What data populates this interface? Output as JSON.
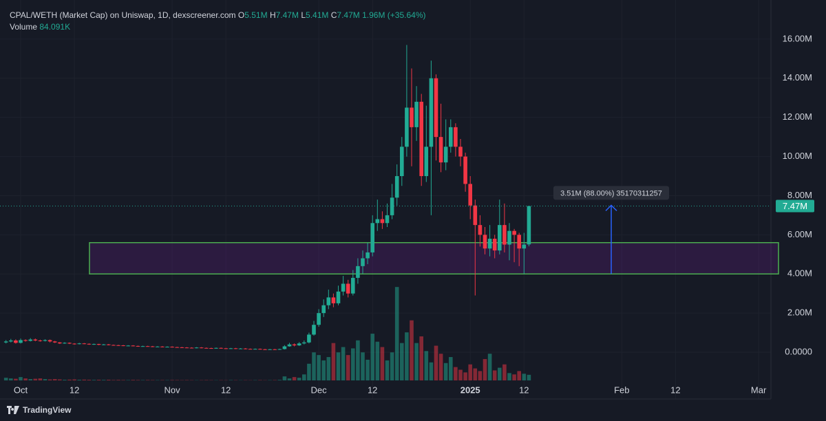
{
  "chart_data": {
    "type": "candlestick",
    "title": "CPAL/WETH (Market Cap) on Uniswap, 1D, dexscreener.com",
    "ohlc_header": [
      {
        "label": "O",
        "value": "5.51M"
      },
      {
        "label": "H",
        "value": "7.47M"
      },
      {
        "label": "L",
        "value": "5.41M"
      },
      {
        "label": "C",
        "value": "7.47M"
      }
    ],
    "change": "1.96M (+35.64%)",
    "volume_title": "Volume",
    "volume_value": "84.091K",
    "categories": [
      null,
      null,
      null,
      "Oct",
      null,
      null,
      null,
      null,
      null,
      null,
      null,
      null,
      null,
      null,
      "12",
      null,
      null,
      null,
      null,
      null,
      null,
      null,
      null,
      null,
      null,
      null,
      null,
      null,
      null,
      null,
      null,
      null,
      null,
      null,
      "Nov",
      null,
      null,
      null,
      null,
      null,
      null,
      null,
      null,
      null,
      null,
      "12",
      null,
      null,
      null,
      null,
      null,
      null,
      null,
      null,
      null,
      null,
      null,
      null,
      null,
      null,
      null,
      null,
      null,
      null,
      "Dec",
      null,
      null,
      null,
      null,
      null,
      null,
      null,
      null,
      null,
      null,
      "12",
      null,
      null,
      null,
      null,
      null,
      null,
      null,
      null,
      null,
      null,
      null,
      null,
      null,
      null,
      null,
      null,
      null,
      null,
      null,
      "2025",
      null,
      null,
      null,
      null,
      null,
      null,
      null,
      null,
      null,
      null,
      "12",
      null,
      null,
      null,
      null,
      null,
      null,
      null,
      null,
      null,
      null,
      null,
      null,
      null,
      null,
      null,
      null,
      null,
      null,
      null,
      "Feb",
      null,
      null,
      null,
      null,
      null,
      null,
      null,
      null,
      null,
      null,
      "12",
      null,
      null,
      null,
      null,
      null,
      null,
      null,
      null,
      null,
      null,
      null,
      null,
      null,
      null,
      null,
      null,
      "Mar",
      null,
      null
    ],
    "open": [
      0.5,
      0.55,
      0.6,
      0.48,
      0.62,
      0.58,
      0.65,
      0.6,
      0.58,
      0.62,
      0.55,
      0.5,
      0.45,
      0.48,
      0.44,
      0.42,
      0.45,
      0.43,
      0.4,
      0.42,
      0.38,
      0.4,
      0.37,
      0.36,
      0.35,
      0.33,
      0.34,
      0.32,
      0.3,
      0.31,
      0.3,
      0.28,
      0.29,
      0.27,
      0.28,
      0.26,
      0.25,
      0.24,
      0.23,
      0.22,
      0.24,
      0.22,
      0.21,
      0.2,
      0.22,
      0.2,
      0.19,
      0.2,
      0.18,
      0.19,
      0.17,
      0.16,
      0.17,
      0.15,
      0.14,
      0.15,
      0.14,
      0.16,
      0.3,
      0.4,
      0.35,
      0.45,
      0.5,
      0.9,
      1.4,
      2.0,
      2.4,
      2.8,
      2.5,
      3.1,
      3.5,
      3.0,
      3.8,
      4.4,
      4.8,
      5.1,
      6.6,
      6.8,
      6.6,
      7.0,
      7.9,
      9.0,
      10.5,
      12.5,
      11.5,
      12.8,
      9.0,
      10.5,
      14.0,
      11.0,
      9.7,
      10.5,
      11.5,
      10.5,
      10.0,
      8.6,
      7.5,
      6.5,
      6.0,
      5.3,
      5.8,
      5.2,
      6.5,
      5.5,
      6.2,
      6.0,
      5.3,
      5.51,
      null,
      null,
      null,
      null,
      null,
      null,
      null,
      null,
      null,
      null,
      null,
      null,
      null,
      null,
      null,
      null,
      null,
      null,
      null,
      null,
      null,
      null,
      null,
      null,
      null,
      null,
      null,
      null,
      null,
      null,
      null,
      null,
      null,
      null,
      null,
      null,
      null,
      null,
      null,
      null,
      null,
      null,
      null,
      null,
      null,
      null,
      null,
      null,
      null
    ],
    "high": [
      0.62,
      0.68,
      0.66,
      0.7,
      0.66,
      0.72,
      0.7,
      0.64,
      0.66,
      0.65,
      0.58,
      0.52,
      0.51,
      0.5,
      0.46,
      0.48,
      0.47,
      0.45,
      0.44,
      0.43,
      0.42,
      0.42,
      0.39,
      0.38,
      0.37,
      0.36,
      0.36,
      0.34,
      0.33,
      0.33,
      0.32,
      0.31,
      0.31,
      0.3,
      0.3,
      0.28,
      0.27,
      0.26,
      0.25,
      0.26,
      0.26,
      0.24,
      0.23,
      0.24,
      0.24,
      0.22,
      0.22,
      0.22,
      0.21,
      0.21,
      0.19,
      0.19,
      0.19,
      0.17,
      0.17,
      0.17,
      0.18,
      0.36,
      0.48,
      0.45,
      0.52,
      0.6,
      1.0,
      1.6,
      2.2,
      2.7,
      3.2,
      3.0,
      3.4,
      3.9,
      3.7,
      4.2,
      4.8,
      5.2,
      5.6,
      7.0,
      7.8,
      7.2,
      7.6,
      8.6,
      9.6,
      11.0,
      15.7,
      14.5,
      13.6,
      13.2,
      12.6,
      14.9,
      14.2,
      12.7,
      11.9,
      11.9,
      11.7,
      10.9,
      10.2,
      9.0,
      7.8,
      7.0,
      6.4,
      6.5,
      6.0,
      7.8,
      7.6,
      6.6,
      6.3,
      6.1,
      6.1,
      7.47,
      null,
      null,
      null,
      null,
      null,
      null,
      null,
      null,
      null,
      null,
      null,
      null,
      null,
      null,
      null,
      null,
      null,
      null,
      null,
      null,
      null,
      null,
      null,
      null,
      null,
      null,
      null,
      null,
      null,
      null,
      null,
      null,
      null,
      null,
      null,
      null,
      null,
      null,
      null,
      null,
      null,
      null,
      null,
      null,
      null,
      null,
      null,
      null,
      null
    ],
    "low": [
      0.45,
      0.5,
      0.44,
      0.45,
      0.54,
      0.55,
      0.56,
      0.54,
      0.55,
      0.5,
      0.47,
      0.42,
      0.43,
      0.42,
      0.39,
      0.4,
      0.41,
      0.38,
      0.38,
      0.36,
      0.36,
      0.35,
      0.34,
      0.33,
      0.31,
      0.31,
      0.3,
      0.28,
      0.28,
      0.28,
      0.26,
      0.26,
      0.25,
      0.25,
      0.24,
      0.23,
      0.22,
      0.21,
      0.2,
      0.2,
      0.2,
      0.19,
      0.18,
      0.18,
      0.18,
      0.17,
      0.17,
      0.16,
      0.16,
      0.15,
      0.14,
      0.14,
      0.13,
      0.12,
      0.12,
      0.12,
      0.12,
      0.14,
      0.28,
      0.3,
      0.32,
      0.4,
      0.45,
      0.85,
      1.3,
      1.8,
      2.2,
      2.3,
      2.4,
      2.9,
      2.8,
      2.9,
      3.5,
      4.0,
      4.5,
      4.9,
      6.2,
      6.3,
      6.4,
      6.8,
      7.5,
      8.5,
      10.0,
      9.5,
      10.8,
      8.5,
      8.7,
      7.0,
      9.8,
      9.2,
      9.3,
      10.2,
      10.0,
      9.5,
      8.2,
      6.8,
      2.9,
      5.4,
      5.0,
      4.9,
      4.8,
      5.0,
      5.1,
      4.7,
      4.6,
      4.4,
      4.0,
      5.41,
      null,
      null,
      null,
      null,
      null,
      null,
      null,
      null,
      null,
      null,
      null,
      null,
      null,
      null,
      null,
      null,
      null,
      null,
      null,
      null,
      null,
      null,
      null,
      null,
      null,
      null,
      null,
      null,
      null,
      null,
      null,
      null,
      null,
      null,
      null,
      null,
      null,
      null,
      null,
      null,
      null,
      null,
      null,
      null,
      null,
      null,
      null,
      null,
      null
    ],
    "close": [
      0.55,
      0.6,
      0.48,
      0.62,
      0.58,
      0.65,
      0.6,
      0.58,
      0.62,
      0.55,
      0.5,
      0.45,
      0.48,
      0.44,
      0.42,
      0.45,
      0.43,
      0.4,
      0.42,
      0.38,
      0.4,
      0.37,
      0.36,
      0.35,
      0.33,
      0.34,
      0.32,
      0.3,
      0.31,
      0.3,
      0.28,
      0.29,
      0.27,
      0.28,
      0.26,
      0.25,
      0.24,
      0.23,
      0.22,
      0.24,
      0.22,
      0.21,
      0.2,
      0.22,
      0.2,
      0.19,
      0.2,
      0.18,
      0.19,
      0.17,
      0.16,
      0.17,
      0.15,
      0.14,
      0.15,
      0.14,
      0.16,
      0.3,
      0.4,
      0.35,
      0.45,
      0.5,
      0.9,
      1.4,
      2.0,
      2.4,
      2.8,
      2.5,
      3.1,
      3.5,
      3.0,
      3.8,
      4.4,
      4.8,
      5.1,
      6.6,
      6.8,
      6.6,
      7.0,
      7.9,
      9.0,
      10.5,
      12.5,
      11.5,
      12.8,
      9.0,
      10.5,
      14.0,
      11.0,
      9.7,
      10.5,
      11.5,
      10.5,
      10.0,
      8.6,
      7.5,
      6.5,
      6.0,
      5.3,
      5.8,
      5.2,
      6.5,
      5.5,
      6.2,
      6.0,
      5.3,
      5.5,
      7.47,
      null,
      null,
      null,
      null,
      null,
      null,
      null,
      null,
      null,
      null,
      null,
      null,
      null,
      null,
      null,
      null,
      null,
      null,
      null,
      null,
      null,
      null,
      null,
      null,
      null,
      null,
      null,
      null,
      null,
      null,
      null,
      null,
      null,
      null,
      null,
      null,
      null,
      null,
      null,
      null,
      null,
      null,
      null,
      null,
      null,
      null,
      null,
      null,
      null
    ],
    "volume": [
      40,
      30,
      25,
      50,
      30,
      20,
      25,
      30,
      20,
      15,
      20,
      15,
      10,
      12,
      15,
      10,
      12,
      10,
      8,
      10,
      8,
      10,
      6,
      8,
      6,
      5,
      8,
      6,
      5,
      6,
      5,
      4,
      5,
      4,
      6,
      5,
      4,
      5,
      4,
      3,
      4,
      5,
      4,
      3,
      4,
      3,
      5,
      4,
      3,
      4,
      3,
      4,
      5,
      3,
      4,
      5,
      8,
      60,
      30,
      50,
      40,
      90,
      250,
      420,
      380,
      300,
      350,
      560,
      420,
      500,
      380,
      480,
      600,
      420,
      310,
      700,
      580,
      500,
      300,
      420,
      1400,
      560,
      720,
      900,
      560,
      660,
      440,
      270,
      520,
      400,
      260,
      350,
      200,
      160,
      120,
      240,
      180,
      140,
      320,
      400,
      150,
      190,
      240,
      110,
      90,
      140,
      100,
      84.091,
      null,
      null,
      null,
      null,
      null,
      null,
      null,
      null,
      null,
      null,
      null,
      null,
      null,
      null,
      null,
      null,
      null,
      null,
      null,
      null,
      null,
      null,
      null,
      null,
      null,
      null,
      null,
      null,
      null,
      null,
      null,
      null,
      null,
      null,
      null,
      null,
      null,
      null,
      null,
      null,
      null,
      null,
      null,
      null,
      null,
      null,
      null,
      null,
      null
    ],
    "ylim": [
      -2.39,
      18.0
    ],
    "yticks": [
      {
        "value": 0,
        "label": "0.0000"
      },
      {
        "value": 2,
        "label": "2.00M"
      },
      {
        "value": 4,
        "label": "4.00M"
      },
      {
        "value": 6,
        "label": "6.00M"
      },
      {
        "value": 8,
        "label": "8.00M"
      },
      {
        "value": 10,
        "label": "10.00M"
      },
      {
        "value": 12,
        "label": "12.00M"
      },
      {
        "value": 14,
        "label": "14.00M"
      },
      {
        "value": 16,
        "label": "16.00M"
      }
    ],
    "y2lim": [
      0,
      5700
    ],
    "grid": true,
    "up_color": "#22ab94",
    "down_color": "#f23645",
    "last_price_label": "7.47M",
    "zone": {
      "low": 4,
      "high": 5.6,
      "color": "#7b1fa2",
      "border": "#4caf50"
    },
    "measure": {
      "label": "3.51M (88.00%) 35170311257",
      "from": 4,
      "to": 7.51,
      "color": "#2962ff"
    }
  },
  "footer": {
    "brand": "TradingView"
  }
}
